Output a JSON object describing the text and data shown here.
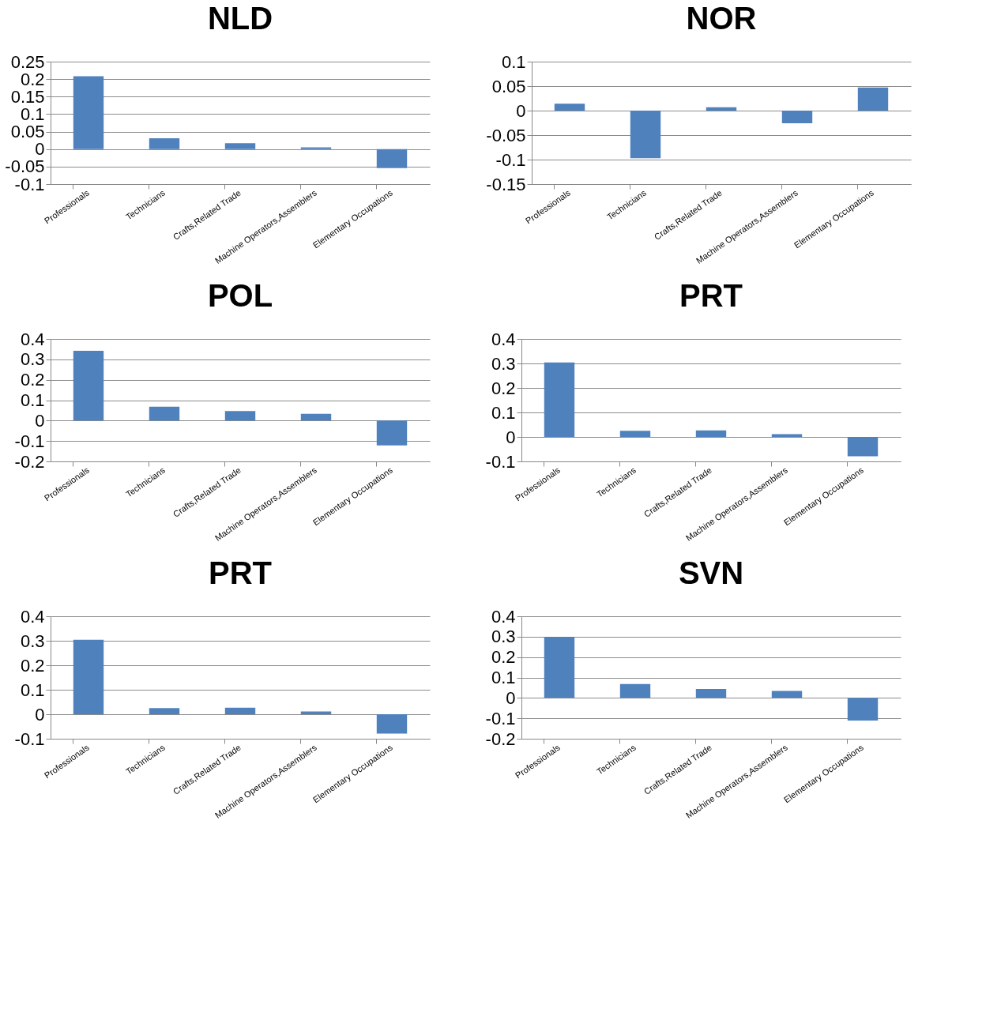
{
  "chart_data": [
    {
      "type": "bar",
      "title": "NLD",
      "categories": [
        "Professionals",
        "Technicians",
        "Crafts,Related Trade",
        "Machine Operators,Assemblers",
        "Elementary Occupations"
      ],
      "values": [
        0.208,
        0.031,
        0.017,
        0.005,
        -0.054
      ],
      "color": "#4f81bd",
      "ylim": [
        -0.1,
        0.25
      ],
      "yticks": [
        -0.1,
        -0.05,
        0,
        0.05,
        0.1,
        0.15,
        0.2,
        0.25
      ],
      "grid": "y"
    },
    {
      "type": "bar",
      "title": "NOR",
      "categories": [
        "Professionals",
        "Technicians",
        "Crafts,Related Trade",
        "Machine Operators,Assemblers",
        "Elementary Occupations"
      ],
      "values": [
        0.014,
        -0.097,
        0.007,
        -0.026,
        0.047
      ],
      "color": "#4f81bd",
      "ylim": [
        -0.15,
        0.1
      ],
      "yticks": [
        -0.15,
        -0.1,
        -0.05,
        0,
        0.05,
        0.1
      ],
      "grid": "y"
    },
    {
      "type": "bar",
      "title": "POL",
      "categories": [
        "Professionals",
        "Technicians",
        "Crafts,Related Trade",
        "Machine Operators,Assemblers",
        "Elementary Occupations"
      ],
      "values": [
        0.342,
        0.068,
        0.047,
        0.033,
        -0.122
      ],
      "color": "#4f81bd",
      "ylim": [
        -0.2,
        0.4
      ],
      "yticks": [
        -0.2,
        -0.1,
        0,
        0.1,
        0.2,
        0.3,
        0.4
      ],
      "grid": "y"
    },
    {
      "type": "bar",
      "title": "PRT",
      "categories": [
        "Professionals",
        "Technicians",
        "Crafts,Related Trade",
        "Machine Operators,Assemblers",
        "Elementary Occupations"
      ],
      "values": [
        0.304,
        0.025,
        0.027,
        0.011,
        -0.079
      ],
      "color": "#4f81bd",
      "ylim": [
        -0.1,
        0.4
      ],
      "yticks": [
        -0.1,
        0,
        0.1,
        0.2,
        0.3,
        0.4
      ],
      "grid": "y"
    },
    {
      "type": "bar",
      "title": "PRT",
      "categories": [
        "Professionals",
        "Technicians",
        "Crafts,Related Trade",
        "Machine Operators,Assemblers",
        "Elementary Occupations"
      ],
      "values": [
        0.304,
        0.025,
        0.027,
        0.011,
        -0.079
      ],
      "color": "#4f81bd",
      "ylim": [
        -0.1,
        0.4
      ],
      "yticks": [
        -0.1,
        0,
        0.1,
        0.2,
        0.3,
        0.4
      ],
      "grid": "y"
    },
    {
      "type": "bar",
      "title": "SVN",
      "categories": [
        "Professionals",
        "Technicians",
        "Crafts,Related Trade",
        "Machine Operators,Assemblers",
        "Elementary Occupations"
      ],
      "values": [
        0.299,
        0.068,
        0.044,
        0.034,
        -0.111
      ],
      "color": "#4f81bd",
      "ylim": [
        -0.2,
        0.4
      ],
      "yticks": [
        -0.2,
        -0.1,
        0,
        0.1,
        0.2,
        0.3,
        0.4
      ],
      "grid": "y"
    }
  ]
}
